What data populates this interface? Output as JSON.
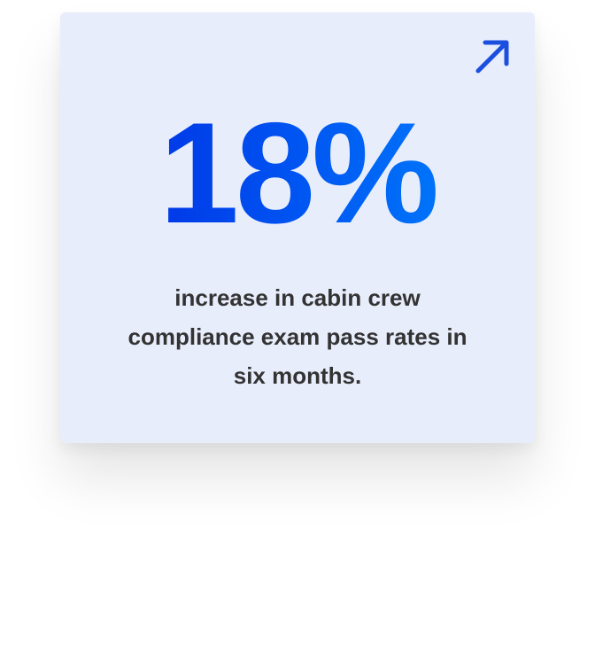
{
  "stat": {
    "value": "18%",
    "description": "increase in cabin crew compliance exam pass rates in six months.",
    "gradient_colors": [
      "#0026e0",
      "#0088ff"
    ],
    "icon": "arrow-up-right-icon",
    "icon_color": "#1a4fe0"
  }
}
